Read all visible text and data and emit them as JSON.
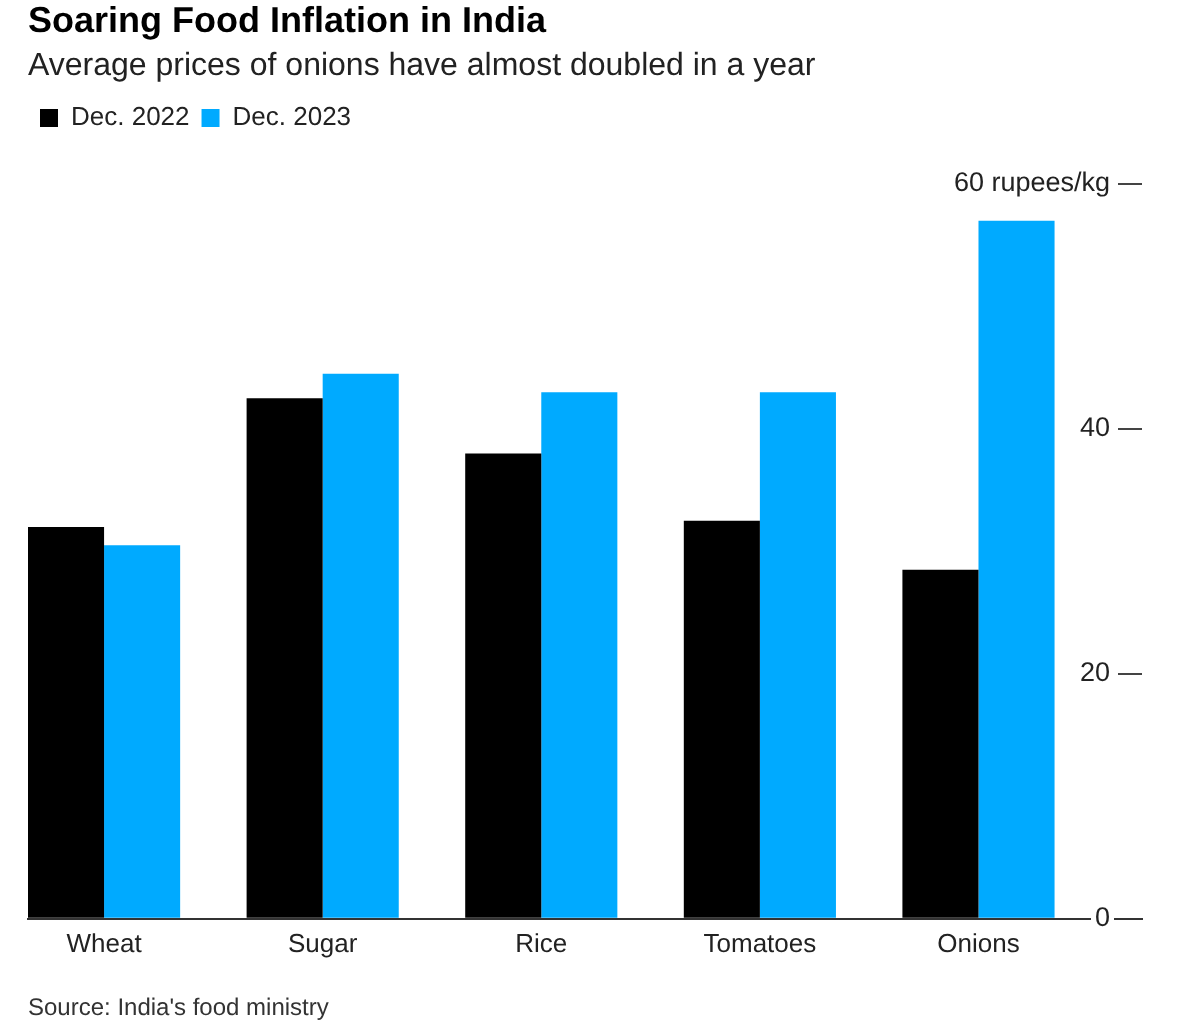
{
  "chart_data": {
    "type": "bar",
    "title": "Soaring Food Inflation in India",
    "subtitle": "Average prices of onions have almost doubled in a year",
    "categories": [
      "Wheat",
      "Sugar",
      "Rice",
      "Tomatoes",
      "Onions"
    ],
    "series": [
      {
        "name": "Dec. 2022",
        "color": "#000000",
        "values": [
          32,
          42.5,
          38,
          32.5,
          28.5
        ]
      },
      {
        "name": "Dec. 2023",
        "color": "#00aaff",
        "values": [
          30.5,
          44.5,
          43,
          43,
          57
        ]
      }
    ],
    "ylim": [
      0,
      60
    ],
    "yticks": [
      0,
      20,
      40,
      {
        "value": 60,
        "label": "60 rupees/kg"
      }
    ],
    "grid": false,
    "legend": "top left",
    "annotations": [
      "Source: India's food ministry"
    ]
  }
}
